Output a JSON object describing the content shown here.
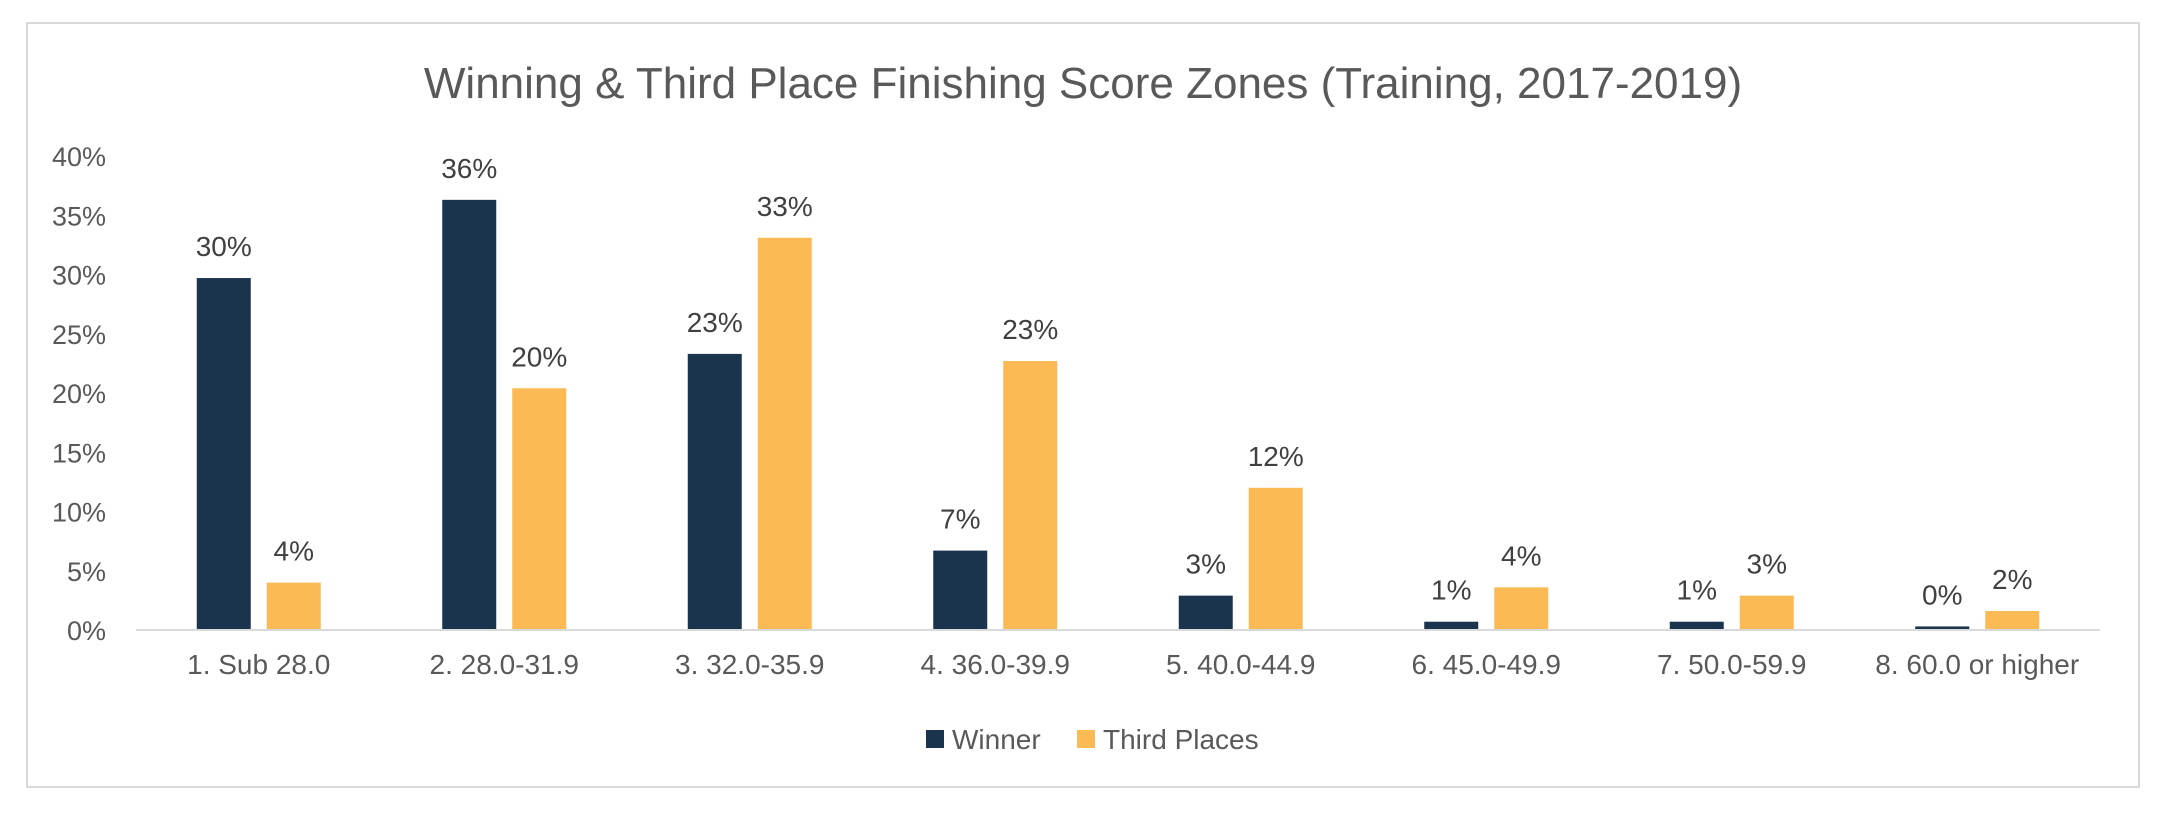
{
  "chart_data": {
    "type": "bar",
    "title": "Winning & Third Place Finishing Score Zones (Training, 2017-2019)",
    "xlabel": "",
    "ylabel": "",
    "ylim": [
      0,
      40
    ],
    "yticks": [
      "0%",
      "5%",
      "10%",
      "15%",
      "20%",
      "25%",
      "30%",
      "35%",
      "40%"
    ],
    "ytick_values": [
      0,
      5,
      10,
      15,
      20,
      25,
      30,
      35,
      40
    ],
    "grid": false,
    "legend_position": "bottom",
    "categories": [
      "1. Sub 28.0",
      "2. 28.0-31.9",
      "3. 32.0-35.9",
      "4. 36.0-39.9",
      "5. 40.0-44.9",
      "6. 45.0-49.9",
      "7. 50.0-59.9",
      "8. 60.0 or higher"
    ],
    "series": [
      {
        "name": "Winner",
        "color": "#1b344d",
        "values": [
          29.7,
          36.3,
          23.3,
          6.7,
          2.9,
          0.7,
          0.7,
          0.3
        ],
        "labels": [
          "30%",
          "36%",
          "23%",
          "7%",
          "3%",
          "1%",
          "1%",
          "0%"
        ]
      },
      {
        "name": "Third Places",
        "color": "#fbba54",
        "values": [
          4.0,
          20.4,
          33.1,
          22.7,
          12.0,
          3.6,
          2.9,
          1.6
        ],
        "labels": [
          "4%",
          "20%",
          "33%",
          "23%",
          "12%",
          "4%",
          "3%",
          "2%"
        ]
      }
    ]
  }
}
